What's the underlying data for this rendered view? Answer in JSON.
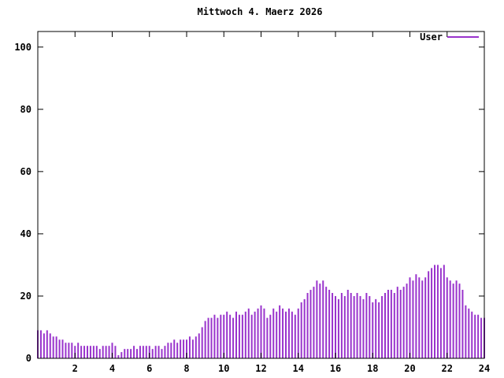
{
  "chart_data": {
    "type": "bar",
    "title": "Mittwoch 4. Maerz 2026",
    "xlabel": "",
    "ylabel": "",
    "xlim": [
      0,
      24
    ],
    "ylim": [
      0,
      105
    ],
    "x_ticks": [
      2,
      4,
      6,
      8,
      10,
      12,
      14,
      16,
      18,
      20,
      22,
      24
    ],
    "y_ticks": [
      0,
      20,
      40,
      60,
      80,
      100
    ],
    "grid": false,
    "legend_position": "top-right-inside",
    "legend": [
      {
        "name": "User",
        "color": "#9933cc"
      }
    ],
    "axis_color": "#000000",
    "background_color": "#ffffff",
    "interval_minutes": 10,
    "values": [
      9,
      9,
      8,
      9,
      8,
      7,
      7,
      6,
      6,
      5,
      5,
      5,
      4,
      5,
      4,
      4,
      4,
      4,
      4,
      4,
      3,
      4,
      4,
      4,
      5,
      4,
      1,
      2,
      3,
      3,
      3,
      4,
      3,
      4,
      4,
      4,
      4,
      3,
      4,
      4,
      3,
      4,
      5,
      5,
      6,
      5,
      6,
      6,
      6,
      7,
      6,
      7,
      8,
      10,
      12,
      13,
      13,
      14,
      13,
      14,
      14,
      15,
      14,
      13,
      15,
      14,
      14,
      15,
      16,
      14,
      15,
      16,
      17,
      16,
      13,
      14,
      16,
      15,
      17,
      16,
      15,
      16,
      15,
      14,
      16,
      18,
      19,
      21,
      22,
      23,
      25,
      24,
      25,
      23,
      22,
      21,
      20,
      19,
      21,
      20,
      22,
      21,
      20,
      21,
      20,
      19,
      21,
      20,
      18,
      19,
      18,
      20,
      21,
      22,
      22,
      21,
      23,
      22,
      23,
      24,
      26,
      25,
      27,
      26,
      25,
      26,
      28,
      29,
      30,
      30,
      29,
      30,
      26,
      25,
      24,
      25,
      24,
      22,
      17,
      16,
      15,
      14,
      14,
      13,
      13
    ]
  }
}
